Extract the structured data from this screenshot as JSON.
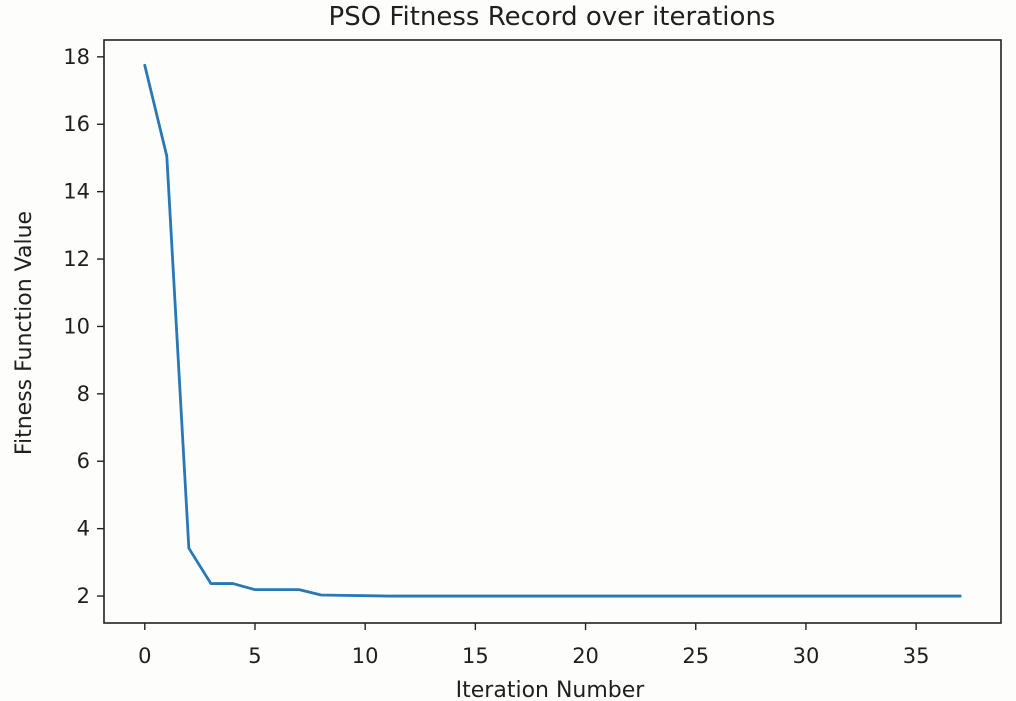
{
  "chart_data": {
    "type": "line",
    "title": "PSO Fitness Record over iterations",
    "xlabel": "Iteration Number",
    "ylabel": "Fitness Function Value",
    "xlim": [
      -1.85,
      38.85
    ],
    "ylim": [
      1.2,
      18.5
    ],
    "x_ticks": [
      0,
      5,
      10,
      15,
      20,
      25,
      30,
      35
    ],
    "y_ticks": [
      2,
      4,
      6,
      8,
      10,
      12,
      14,
      16,
      18
    ],
    "grid": false,
    "legend": "none",
    "series": [
      {
        "color": "#2878b5",
        "x": [
          0,
          1,
          2,
          3,
          4,
          5,
          6,
          7,
          8,
          9,
          10,
          11,
          12,
          13,
          14,
          15,
          16,
          17,
          18,
          19,
          20,
          21,
          22,
          23,
          24,
          25,
          26,
          27,
          28,
          29,
          30,
          31,
          32,
          33,
          34,
          35,
          36,
          37
        ],
        "values": [
          17.75,
          15.05,
          3.42,
          2.37,
          2.37,
          2.19,
          2.19,
          2.19,
          2.03,
          2.02,
          2.01,
          2.0,
          2.0,
          2.0,
          2.0,
          2.0,
          2.0,
          2.0,
          2.0,
          2.0,
          2.0,
          2.0,
          2.0,
          2.0,
          2.0,
          2.0,
          2.0,
          2.0,
          2.0,
          2.0,
          2.0,
          2.0,
          2.0,
          2.0,
          2.0,
          2.0,
          2.0,
          2.0
        ]
      }
    ]
  }
}
